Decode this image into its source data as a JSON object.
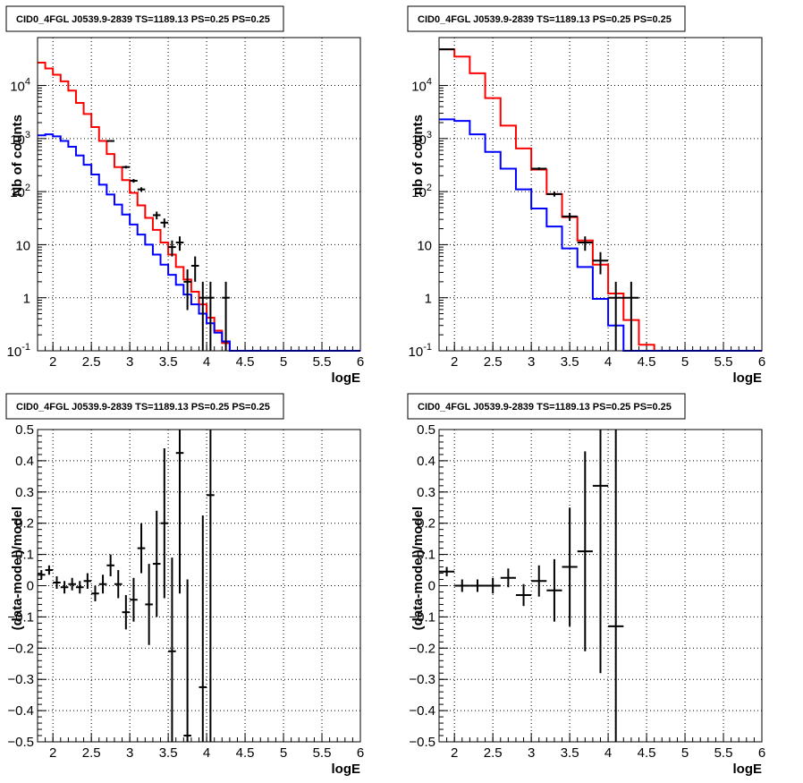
{
  "chart_data": [
    {
      "type": "line",
      "title": "CID0_4FGL J0539.9-2839 TS=1189.13 PS=0.25 PS=0.25",
      "xlabel": "logE",
      "ylabel": "Nb of counts",
      "xlim": [
        1.8,
        6.0
      ],
      "ylim": [
        0.1,
        80000
      ],
      "yscale": "log",
      "grid": true,
      "x_ticks": [
        "2",
        "2.5",
        "3",
        "3.5",
        "4",
        "4.5",
        "5",
        "5.5",
        "6"
      ],
      "y_ticks": [
        "10^-1",
        "1",
        "10",
        "10^2",
        "10^3",
        "10^4"
      ],
      "bin_edges": [
        1.8,
        1.9,
        2.0,
        2.1,
        2.2,
        2.3,
        2.4,
        2.5,
        2.6,
        2.7,
        2.8,
        2.9,
        3.0,
        3.1,
        3.2,
        3.3,
        3.4,
        3.5,
        3.6,
        3.7,
        3.8,
        3.9,
        4.0,
        4.1,
        4.2,
        4.3,
        4.4,
        4.5,
        4.6,
        4.7,
        4.8,
        4.9,
        5.0,
        5.1,
        5.2,
        5.3,
        5.4,
        5.5,
        5.6,
        5.7,
        5.8,
        5.9,
        6.0
      ],
      "series": [
        {
          "kind": "step",
          "color": "#ff0000",
          "values": [
            27000,
            21000,
            16000,
            12000,
            8000,
            4700,
            2900,
            1650,
            900,
            510,
            290,
            165,
            95,
            55,
            32,
            19,
            11,
            6.5,
            3.8,
            2.2,
            1.3,
            0.75,
            0.42,
            0.24,
            0.14,
            0.1,
            0.1,
            0.1,
            0.1,
            0.1,
            0.1,
            0.1,
            0.1,
            0.1,
            0.1,
            0.1,
            0.1,
            0.1,
            0.1,
            0.1,
            0.1,
            0.1
          ]
        },
        {
          "kind": "step",
          "color": "#0000ff",
          "values": [
            1150,
            1200,
            1100,
            900,
            700,
            480,
            320,
            210,
            135,
            88,
            57,
            37,
            24,
            15.5,
            10,
            6.5,
            4.2,
            2.7,
            1.75,
            1.15,
            0.75,
            0.5,
            0.33,
            0.22,
            0.15,
            0.1,
            0.1,
            0.1,
            0.1,
            0.1,
            0.1,
            0.1,
            0.1,
            0.1,
            0.1,
            0.1,
            0.1,
            0.1,
            0.1,
            0.1,
            0.1,
            0.1
          ]
        },
        {
          "kind": "points",
          "color": "#000000",
          "x": [
            2.75,
            2.95,
            3.05,
            3.15,
            3.35,
            3.45,
            3.55,
            3.65,
            3.75,
            3.85,
            3.95,
            4.05,
            4.25
          ],
          "y": [
            900,
            290,
            160,
            110,
            36,
            26,
            9,
            11,
            2,
            4,
            1,
            1,
            1
          ]
        }
      ]
    },
    {
      "type": "line",
      "title": "CID0_4FGL J0539.9-2839 TS=1189.13 PS=0.25 PS=0.25",
      "xlabel": "logE",
      "ylabel": "nb of counts",
      "xlim": [
        1.8,
        6.0
      ],
      "ylim": [
        0.1,
        80000
      ],
      "yscale": "log",
      "grid": true,
      "x_ticks": [
        "2",
        "2.5",
        "3",
        "3.5",
        "4",
        "4.5",
        "5",
        "5.5",
        "6"
      ],
      "y_ticks": [
        "10^-1",
        "1",
        "10",
        "10^2",
        "10^3",
        "10^4"
      ],
      "bin_edges": [
        1.8,
        2.0,
        2.2,
        2.4,
        2.6,
        2.8,
        3.0,
        3.2,
        3.4,
        3.6,
        3.8,
        4.0,
        4.2,
        4.4,
        4.6,
        4.8,
        5.0,
        5.2,
        5.4,
        5.6,
        5.8,
        6.0
      ],
      "series": [
        {
          "kind": "step",
          "color": "#ff0000",
          "values": [
            48000,
            35000,
            17000,
            5800,
            1750,
            650,
            260,
            90,
            33,
            12,
            4.2,
            1.2,
            0.38,
            0.13,
            0.1,
            0.1,
            0.1,
            0.1,
            0.1,
            0.1,
            0.1
          ]
        },
        {
          "kind": "step",
          "color": "#0000ff",
          "values": [
            2300,
            2150,
            1200,
            560,
            270,
            110,
            48,
            22,
            8.5,
            3.8,
            0.95,
            0.3,
            0.1,
            0.1,
            0.1,
            0.1,
            0.1,
            0.1,
            0.1,
            0.1,
            0.1
          ]
        },
        {
          "kind": "points",
          "color": "#000000",
          "x": [
            1.9,
            3.1,
            3.3,
            3.5,
            3.7,
            3.9,
            4.1,
            4.3
          ],
          "y": [
            48000,
            270,
            90,
            34,
            11,
            5,
            1,
            1
          ]
        }
      ]
    },
    {
      "type": "scatter",
      "title": "CID0_4FGL J0539.9-2839 TS=1189.13 PS=0.25 PS=0.25",
      "xlabel": "logE",
      "ylabel": "(data-model)/model",
      "xlim": [
        1.8,
        6.0
      ],
      "ylim": [
        -0.5,
        0.5
      ],
      "grid": true,
      "x_ticks": [
        "2",
        "2.5",
        "3",
        "3.5",
        "4",
        "4.5",
        "5",
        "5.5",
        "6"
      ],
      "y_ticks": [
        "-0.5",
        "-0.4",
        "-0.3",
        "-0.2",
        "-0.1",
        "0",
        "0.1",
        "0.2",
        "0.3",
        "0.4",
        "0.5"
      ],
      "points": [
        {
          "x": 1.85,
          "y": 0.035,
          "err": 0.015
        },
        {
          "x": 1.95,
          "y": 0.05,
          "err": 0.015
        },
        {
          "x": 2.05,
          "y": 0.01,
          "err": 0.02
        },
        {
          "x": 2.15,
          "y": -0.005,
          "err": 0.02
        },
        {
          "x": 2.25,
          "y": 0.005,
          "err": 0.02
        },
        {
          "x": 2.35,
          "y": -0.005,
          "err": 0.02
        },
        {
          "x": 2.45,
          "y": 0.015,
          "err": 0.025
        },
        {
          "x": 2.55,
          "y": -0.025,
          "err": 0.025
        },
        {
          "x": 2.65,
          "y": 0.005,
          "err": 0.03
        },
        {
          "x": 2.75,
          "y": 0.065,
          "err": 0.035
        },
        {
          "x": 2.85,
          "y": 0.005,
          "err": 0.045
        },
        {
          "x": 2.95,
          "y": -0.085,
          "err": 0.055
        },
        {
          "x": 3.05,
          "y": -0.045,
          "err": 0.07
        },
        {
          "x": 3.15,
          "y": 0.12,
          "err": 0.08
        },
        {
          "x": 3.25,
          "y": -0.06,
          "err": 0.13
        },
        {
          "x": 3.35,
          "y": 0.07,
          "err": 0.17
        },
        {
          "x": 3.45,
          "y": 0.2,
          "err": 0.24
        },
        {
          "x": 3.55,
          "y": -0.21,
          "err": 0.3
        },
        {
          "x": 3.65,
          "y": 0.425,
          "err": 0.45
        },
        {
          "x": 3.75,
          "y": -0.48,
          "err": 0.5
        },
        {
          "x": 3.95,
          "y": -0.325,
          "err": 0.55
        },
        {
          "x": 4.05,
          "y": 0.29,
          "err": 0.8
        }
      ]
    },
    {
      "type": "scatter",
      "title": "CID0_4FGL J0539.9-2839 TS=1189.13 PS=0.25 PS=0.25",
      "xlabel": "logE",
      "ylabel": "(data-model)/model",
      "xlim": [
        1.8,
        6.0
      ],
      "ylim": [
        -0.5,
        0.5
      ],
      "grid": true,
      "x_ticks": [
        "2",
        "2.5",
        "3",
        "3.5",
        "4",
        "4.5",
        "5",
        "5.5",
        "6"
      ],
      "y_ticks": [
        "-0.5",
        "-0.4",
        "-0.3",
        "-0.2",
        "-0.1",
        "0",
        "0.1",
        "0.2",
        "0.3",
        "0.4",
        "0.5"
      ],
      "points": [
        {
          "x": 1.9,
          "y": 0.045,
          "err": 0.015
        },
        {
          "x": 2.1,
          "y": 0.0,
          "err": 0.02
        },
        {
          "x": 2.3,
          "y": 0.0,
          "err": 0.02
        },
        {
          "x": 2.5,
          "y": 0.0,
          "err": 0.025
        },
        {
          "x": 2.7,
          "y": 0.025,
          "err": 0.03
        },
        {
          "x": 2.9,
          "y": -0.03,
          "err": 0.035
        },
        {
          "x": 3.1,
          "y": 0.015,
          "err": 0.05
        },
        {
          "x": 3.3,
          "y": -0.015,
          "err": 0.1
        },
        {
          "x": 3.5,
          "y": 0.06,
          "err": 0.19
        },
        {
          "x": 3.7,
          "y": 0.11,
          "err": 0.32
        },
        {
          "x": 3.9,
          "y": 0.32,
          "err": 0.6
        },
        {
          "x": 4.1,
          "y": -0.13,
          "err": 0.9
        }
      ]
    }
  ]
}
